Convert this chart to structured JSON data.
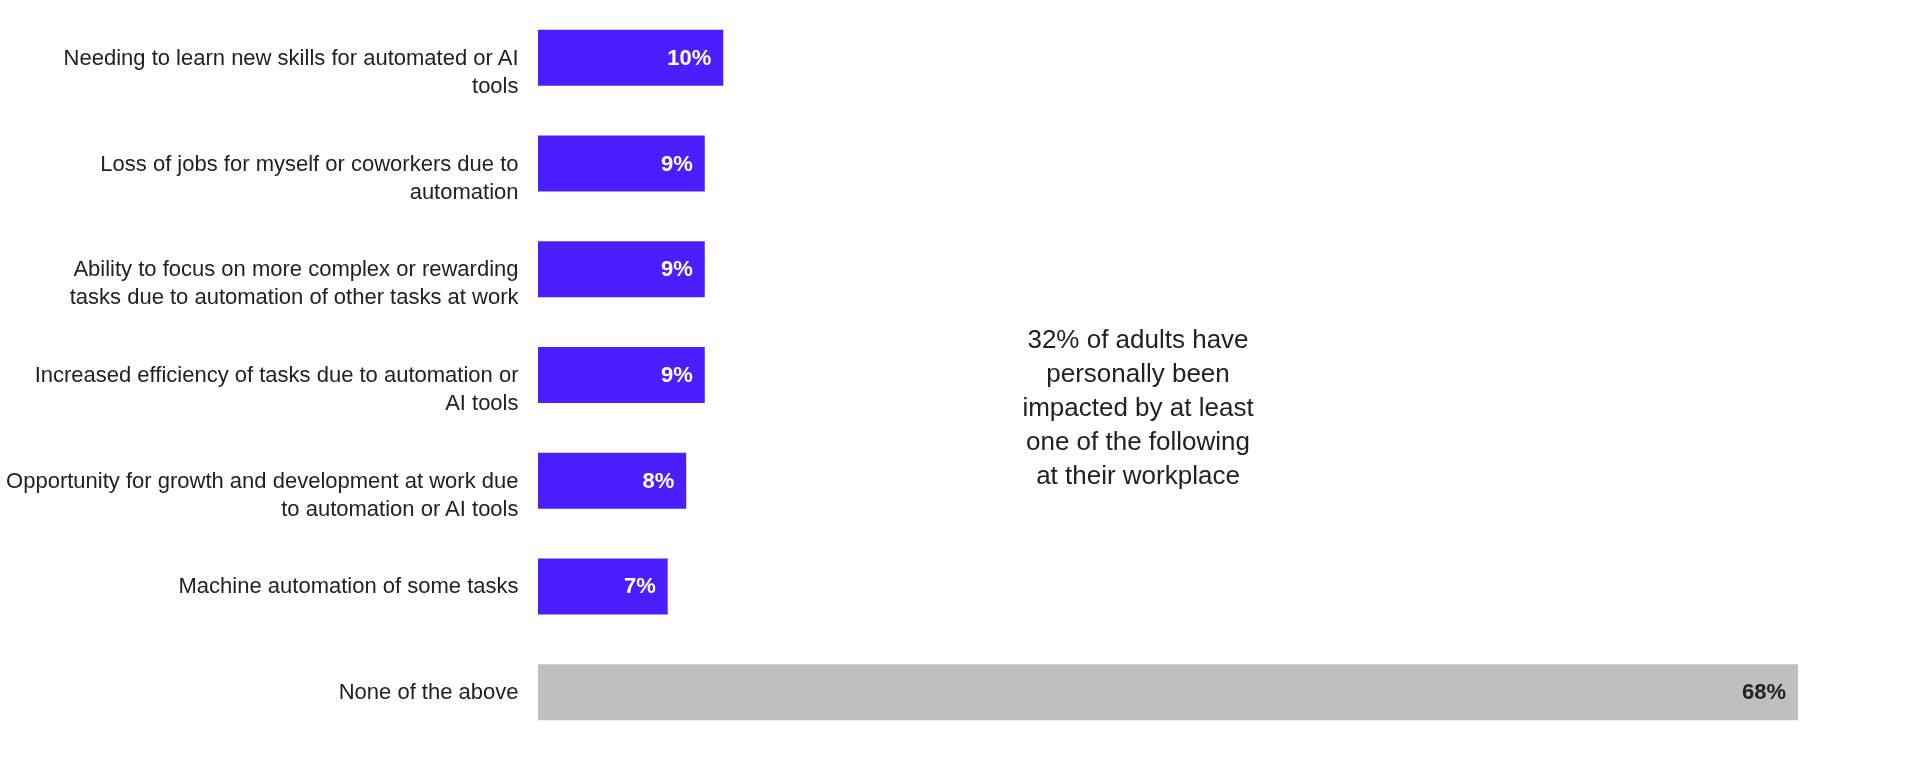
{
  "chart_data": {
    "type": "bar",
    "orientation": "horizontal",
    "categories": [
      "Needing to learn new skills for automated or AI tools",
      "Loss of jobs for myself or coworkers due to automation",
      "Ability to focus on more complex or rewarding tasks due to automation of other tasks at work",
      "Increased efficiency of tasks due to automation or AI tools",
      "Opportunity for growth and development at work due to automation or AI tools",
      "Machine automation of some tasks",
      "None of the above"
    ],
    "values": [
      10,
      9,
      9,
      9,
      8,
      7,
      68
    ],
    "colors": [
      "#4b1eff",
      "#4b1eff",
      "#4b1eff",
      "#4b1eff",
      "#4b1eff",
      "#4b1eff",
      "#bfbfbf"
    ],
    "value_labels": [
      "10%",
      "9%",
      "9%",
      "9%",
      "8%",
      "7%",
      "68%"
    ],
    "annotations": [
      "32% of adults have personally been impacted by at least one of the following at their workplace"
    ],
    "grid": false
  }
}
